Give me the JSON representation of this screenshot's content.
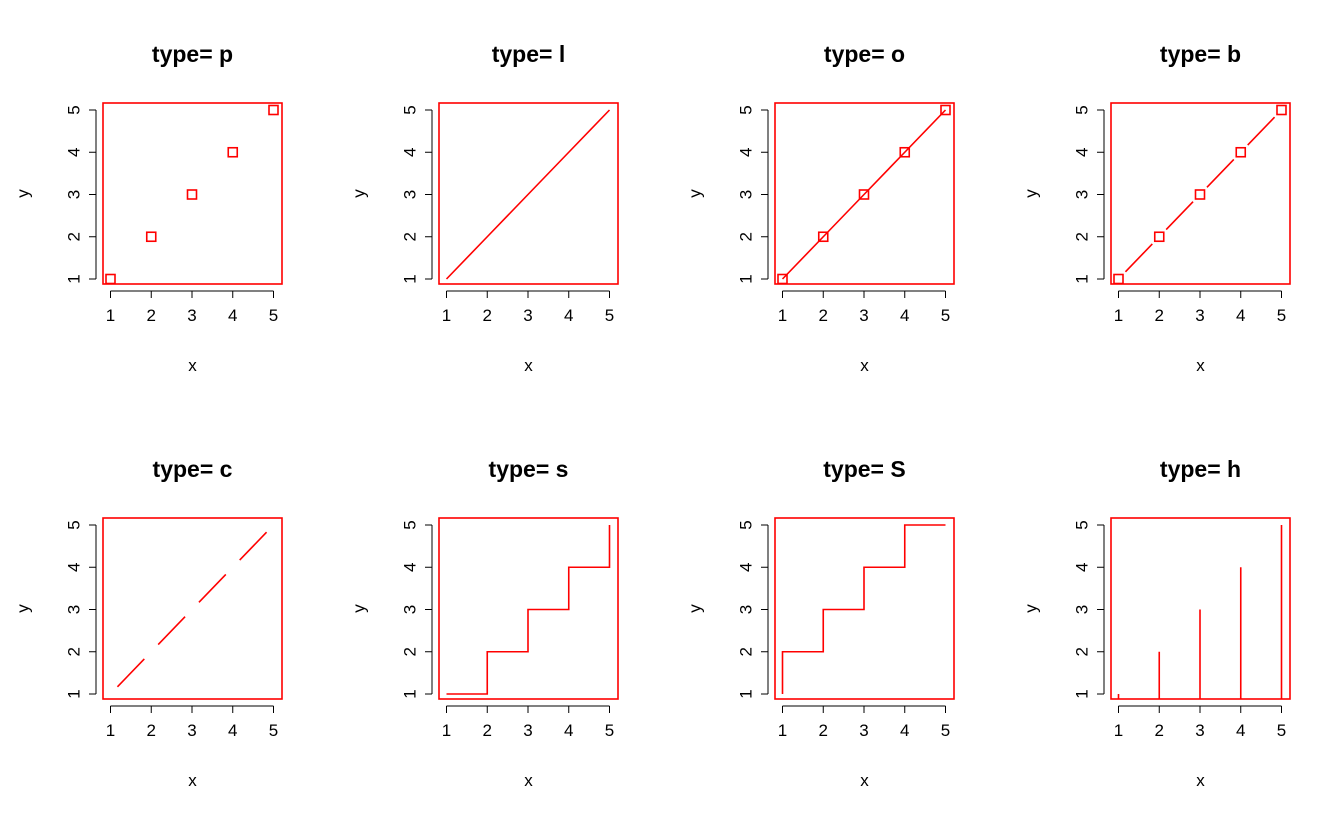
{
  "chart_data": [
    {
      "type": "scatter",
      "plot_type": "p",
      "title": "type= p",
      "x": [
        1,
        2,
        3,
        4,
        5
      ],
      "y": [
        1,
        2,
        3,
        4,
        5
      ],
      "xlabel": "x",
      "ylabel": "y",
      "xlim": [
        1,
        5
      ],
      "ylim": [
        1,
        5
      ],
      "xticks": [
        "1",
        "2",
        "3",
        "4",
        "5"
      ],
      "yticks": [
        "1",
        "2",
        "3",
        "4",
        "5"
      ],
      "color": "#ff0000",
      "point_shape": "open-square",
      "grid": false
    },
    {
      "type": "line",
      "plot_type": "l",
      "title": "type= l",
      "x": [
        1,
        2,
        3,
        4,
        5
      ],
      "y": [
        1,
        2,
        3,
        4,
        5
      ],
      "xlabel": "x",
      "ylabel": "y",
      "xlim": [
        1,
        5
      ],
      "ylim": [
        1,
        5
      ],
      "xticks": [
        "1",
        "2",
        "3",
        "4",
        "5"
      ],
      "yticks": [
        "1",
        "2",
        "3",
        "4",
        "5"
      ],
      "color": "#ff0000",
      "grid": false
    },
    {
      "type": "line",
      "plot_type": "o",
      "title": "type= o",
      "x": [
        1,
        2,
        3,
        4,
        5
      ],
      "y": [
        1,
        2,
        3,
        4,
        5
      ],
      "xlabel": "x",
      "ylabel": "y",
      "xlim": [
        1,
        5
      ],
      "ylim": [
        1,
        5
      ],
      "xticks": [
        "1",
        "2",
        "3",
        "4",
        "5"
      ],
      "yticks": [
        "1",
        "2",
        "3",
        "4",
        "5"
      ],
      "color": "#ff0000",
      "point_shape": "open-square",
      "grid": false
    },
    {
      "type": "line",
      "plot_type": "b",
      "title": "type= b",
      "x": [
        1,
        2,
        3,
        4,
        5
      ],
      "y": [
        1,
        2,
        3,
        4,
        5
      ],
      "xlabel": "x",
      "ylabel": "y",
      "xlim": [
        1,
        5
      ],
      "ylim": [
        1,
        5
      ],
      "xticks": [
        "1",
        "2",
        "3",
        "4",
        "5"
      ],
      "yticks": [
        "1",
        "2",
        "3",
        "4",
        "5"
      ],
      "color": "#ff0000",
      "point_shape": "open-square",
      "grid": false
    },
    {
      "type": "line",
      "plot_type": "c",
      "title": "type= c",
      "x": [
        1,
        2,
        3,
        4,
        5
      ],
      "y": [
        1,
        2,
        3,
        4,
        5
      ],
      "xlabel": "x",
      "ylabel": "y",
      "xlim": [
        1,
        5
      ],
      "ylim": [
        1,
        5
      ],
      "xticks": [
        "1",
        "2",
        "3",
        "4",
        "5"
      ],
      "yticks": [
        "1",
        "2",
        "3",
        "4",
        "5"
      ],
      "color": "#ff0000",
      "grid": false
    },
    {
      "type": "line",
      "plot_type": "s",
      "title": "type= s",
      "x": [
        1,
        2,
        3,
        4,
        5
      ],
      "y": [
        1,
        2,
        3,
        4,
        5
      ],
      "xlabel": "x",
      "ylabel": "y",
      "xlim": [
        1,
        5
      ],
      "ylim": [
        1,
        5
      ],
      "xticks": [
        "1",
        "2",
        "3",
        "4",
        "5"
      ],
      "yticks": [
        "1",
        "2",
        "3",
        "4",
        "5"
      ],
      "color": "#ff0000",
      "step": "horizontal-first",
      "grid": false
    },
    {
      "type": "line",
      "plot_type": "S",
      "title": "type= S",
      "x": [
        1,
        2,
        3,
        4,
        5
      ],
      "y": [
        1,
        2,
        3,
        4,
        5
      ],
      "xlabel": "x",
      "ylabel": "y",
      "xlim": [
        1,
        5
      ],
      "ylim": [
        1,
        5
      ],
      "xticks": [
        "1",
        "2",
        "3",
        "4",
        "5"
      ],
      "yticks": [
        "1",
        "2",
        "3",
        "4",
        "5"
      ],
      "color": "#ff0000",
      "step": "vertical-first",
      "grid": false
    },
    {
      "type": "bar",
      "plot_type": "h",
      "title": "type= h",
      "x": [
        1,
        2,
        3,
        4,
        5
      ],
      "y": [
        1,
        2,
        3,
        4,
        5
      ],
      "xlabel": "x",
      "ylabel": "y",
      "xlim": [
        1,
        5
      ],
      "ylim": [
        1,
        5
      ],
      "xticks": [
        "1",
        "2",
        "3",
        "4",
        "5"
      ],
      "yticks": [
        "1",
        "2",
        "3",
        "4",
        "5"
      ],
      "color": "#ff0000",
      "grid": false
    }
  ]
}
